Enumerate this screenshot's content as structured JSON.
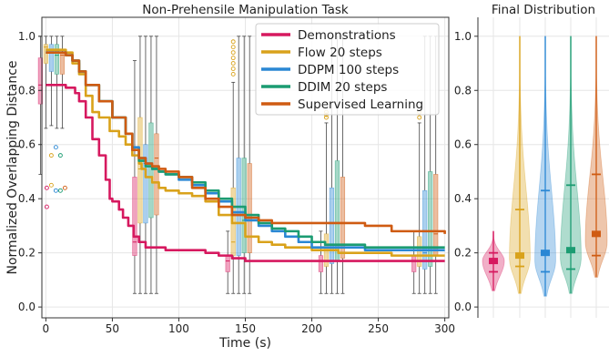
{
  "chart_data": [
    {
      "type": "line",
      "title": "Non-Prehensile Manipulation Task",
      "xlabel": "Time (s)",
      "ylabel": "Normalized Overlapping Distance",
      "xlim": [
        -3,
        303
      ],
      "ylim": [
        -0.04,
        1.07
      ],
      "xticks": [
        0,
        50,
        100,
        150,
        200,
        250,
        300
      ],
      "yticks": [
        0.0,
        0.2,
        0.4,
        0.6,
        0.8,
        1.0
      ],
      "xtick_labels": [
        "0",
        "50",
        "100",
        "150",
        "200",
        "250",
        "300"
      ],
      "ytick_labels": [
        "0.0",
        "0.2",
        "0.4",
        "0.6",
        "0.8",
        "1.0"
      ],
      "grid": true,
      "legend_position": "top-right",
      "series": [
        {
          "name": "Demonstrations",
          "color": "#d6195f",
          "x": [
            0,
            12,
            15,
            22,
            25,
            30,
            35,
            40,
            45,
            48,
            50,
            55,
            58,
            62,
            66,
            70,
            75,
            80,
            90,
            100,
            110,
            120,
            130,
            140,
            150,
            175,
            200,
            250,
            300
          ],
          "y": [
            0.82,
            0.82,
            0.81,
            0.79,
            0.76,
            0.7,
            0.62,
            0.56,
            0.47,
            0.4,
            0.39,
            0.36,
            0.33,
            0.3,
            0.26,
            0.24,
            0.22,
            0.22,
            0.21,
            0.21,
            0.21,
            0.2,
            0.19,
            0.18,
            0.17,
            0.17,
            0.17,
            0.17,
            0.17
          ]
        },
        {
          "name": "Flow 20 steps",
          "color": "#d9a21b",
          "x": [
            0,
            8,
            15,
            20,
            25,
            30,
            35,
            40,
            48,
            55,
            60,
            65,
            70,
            72,
            75,
            80,
            85,
            90,
            100,
            110,
            120,
            130,
            140,
            150,
            160,
            170,
            180,
            200,
            220,
            240,
            260,
            280,
            300
          ],
          "y": [
            0.95,
            0.95,
            0.94,
            0.9,
            0.86,
            0.78,
            0.72,
            0.7,
            0.65,
            0.63,
            0.6,
            0.56,
            0.53,
            0.51,
            0.48,
            0.46,
            0.44,
            0.43,
            0.42,
            0.41,
            0.39,
            0.34,
            0.31,
            0.26,
            0.24,
            0.23,
            0.22,
            0.21,
            0.2,
            0.2,
            0.19,
            0.19,
            0.19
          ]
        },
        {
          "name": "DDPM 100 steps",
          "color": "#2a87d4",
          "x": [
            0,
            8,
            15,
            20,
            25,
            30,
            40,
            50,
            60,
            65,
            70,
            75,
            80,
            85,
            90,
            100,
            110,
            120,
            130,
            140,
            150,
            160,
            170,
            180,
            190,
            200,
            220,
            240,
            260,
            280,
            300
          ],
          "y": [
            0.94,
            0.94,
            0.93,
            0.91,
            0.87,
            0.82,
            0.76,
            0.7,
            0.64,
            0.59,
            0.55,
            0.53,
            0.51,
            0.5,
            0.49,
            0.47,
            0.45,
            0.42,
            0.39,
            0.35,
            0.32,
            0.3,
            0.28,
            0.26,
            0.24,
            0.22,
            0.22,
            0.21,
            0.21,
            0.21,
            0.21
          ]
        },
        {
          "name": "DDIM 20 steps",
          "color": "#1b9c72",
          "x": [
            0,
            8,
            15,
            20,
            25,
            30,
            40,
            50,
            60,
            65,
            70,
            75,
            80,
            85,
            90,
            100,
            110,
            120,
            130,
            140,
            150,
            160,
            170,
            180,
            190,
            200,
            210,
            220,
            240,
            260,
            280,
            300
          ],
          "y": [
            0.94,
            0.94,
            0.93,
            0.91,
            0.87,
            0.82,
            0.76,
            0.7,
            0.64,
            0.58,
            0.54,
            0.52,
            0.51,
            0.5,
            0.49,
            0.48,
            0.46,
            0.43,
            0.4,
            0.37,
            0.34,
            0.31,
            0.29,
            0.28,
            0.26,
            0.24,
            0.23,
            0.23,
            0.22,
            0.22,
            0.22,
            0.22
          ]
        },
        {
          "name": "Supervised Learning",
          "color": "#cf5b12",
          "x": [
            0,
            8,
            15,
            20,
            25,
            30,
            40,
            50,
            60,
            65,
            70,
            75,
            80,
            85,
            90,
            100,
            110,
            120,
            130,
            140,
            150,
            160,
            170,
            175,
            200,
            220,
            240,
            260,
            280,
            300
          ],
          "y": [
            0.94,
            0.94,
            0.93,
            0.91,
            0.87,
            0.82,
            0.76,
            0.7,
            0.64,
            0.58,
            0.55,
            0.53,
            0.52,
            0.51,
            0.5,
            0.48,
            0.44,
            0.4,
            0.37,
            0.34,
            0.33,
            0.32,
            0.31,
            0.31,
            0.31,
            0.31,
            0.3,
            0.28,
            0.28,
            0.27
          ]
        }
      ],
      "boxplots": [
        {
          "t": 0,
          "boxes": [
            {
              "series": "Demonstrations",
              "whisker_low": 0.49,
              "q1": 0.75,
              "median": 0.82,
              "q3": 0.92,
              "whisker_high": 1.0,
              "fliers": [
                0.44,
                0.37
              ]
            },
            {
              "series": "Flow 20 steps",
              "whisker_low": 0.66,
              "q1": 0.9,
              "median": 0.96,
              "q3": 0.97,
              "whisker_high": 1.0,
              "fliers": [
                0.56,
                0.45
              ]
            },
            {
              "series": "DDPM 100 steps",
              "whisker_low": 0.67,
              "q1": 0.87,
              "median": 0.94,
              "q3": 0.97,
              "whisker_high": 1.0,
              "fliers": [
                0.59,
                0.43
              ]
            },
            {
              "series": "DDIM 20 steps",
              "whisker_low": 0.66,
              "q1": 0.86,
              "median": 0.93,
              "q3": 0.97,
              "whisker_high": 1.0,
              "fliers": [
                0.56,
                0.43
              ]
            },
            {
              "series": "Supervised Learning",
              "whisker_low": 0.66,
              "q1": 0.86,
              "median": 0.93,
              "q3": 0.94,
              "whisker_high": 1.0,
              "fliers": [
                0.44
              ]
            }
          ]
        },
        {
          "t": 75,
          "boxes": [
            {
              "series": "Demonstrations",
              "whisker_low": 0.05,
              "q1": 0.19,
              "median": 0.24,
              "q3": 0.48,
              "whisker_high": 0.91
            },
            {
              "series": "Flow 20 steps",
              "whisker_low": 0.05,
              "q1": 0.31,
              "median": 0.51,
              "q3": 0.7,
              "whisker_high": 1.0
            },
            {
              "series": "DDPM 100 steps",
              "whisker_low": 0.05,
              "q1": 0.31,
              "median": 0.53,
              "q3": 0.6,
              "whisker_high": 1.0
            },
            {
              "series": "DDIM 20 steps",
              "whisker_low": 0.05,
              "q1": 0.33,
              "median": 0.53,
              "q3": 0.68,
              "whisker_high": 1.0
            },
            {
              "series": "Supervised Learning",
              "whisker_low": 0.05,
              "q1": 0.34,
              "median": 0.55,
              "q3": 0.64,
              "whisker_high": 1.0
            }
          ]
        },
        {
          "t": 145,
          "boxes": [
            {
              "series": "Demonstrations",
              "whisker_low": 0.05,
              "q1": 0.13,
              "median": 0.17,
              "q3": 0.19,
              "whisker_high": 0.28
            },
            {
              "series": "Flow 20 steps",
              "whisker_low": 0.05,
              "q1": 0.19,
              "median": 0.24,
              "q3": 0.44,
              "whisker_high": 0.83,
              "fliers": [
                0.86,
                0.88,
                0.9,
                0.92,
                0.94,
                0.96,
                0.98
              ]
            },
            {
              "series": "DDPM 100 steps",
              "whisker_low": 0.05,
              "q1": 0.19,
              "median": 0.31,
              "q3": 0.55,
              "whisker_high": 1.0
            },
            {
              "series": "DDIM 20 steps",
              "whisker_low": 0.05,
              "q1": 0.2,
              "median": 0.32,
              "q3": 0.55,
              "whisker_high": 1.0
            },
            {
              "series": "Supervised Learning",
              "whisker_low": 0.05,
              "q1": 0.2,
              "median": 0.32,
              "q3": 0.53,
              "whisker_high": 1.0
            }
          ]
        },
        {
          "t": 215,
          "boxes": [
            {
              "series": "Demonstrations",
              "whisker_low": 0.05,
              "q1": 0.13,
              "median": 0.17,
              "q3": 0.19,
              "whisker_high": 0.28
            },
            {
              "series": "Flow 20 steps",
              "whisker_low": 0.05,
              "q1": 0.15,
              "median": 0.21,
              "q3": 0.27,
              "whisker_high": 0.68,
              "fliers": [
                0.7,
                0.71,
                0.72
              ]
            },
            {
              "series": "DDPM 100 steps",
              "whisker_low": 0.05,
              "q1": 0.16,
              "median": 0.22,
              "q3": 0.44,
              "whisker_high": 1.0
            },
            {
              "series": "DDIM 20 steps",
              "whisker_low": 0.05,
              "q1": 0.17,
              "median": 0.23,
              "q3": 0.54,
              "whisker_high": 1.0
            },
            {
              "series": "Supervised Learning",
              "whisker_low": 0.05,
              "q1": 0.18,
              "median": 0.31,
              "q3": 0.48,
              "whisker_high": 1.0
            }
          ]
        },
        {
          "t": 285,
          "boxes": [
            {
              "series": "Demonstrations",
              "whisker_low": 0.05,
              "q1": 0.13,
              "median": 0.17,
              "q3": 0.19,
              "whisker_high": 0.28
            },
            {
              "series": "Flow 20 steps",
              "whisker_low": 0.05,
              "q1": 0.15,
              "median": 0.19,
              "q3": 0.26,
              "whisker_high": 0.68,
              "fliers": [
                0.7,
                0.72
              ]
            },
            {
              "series": "DDPM 100 steps",
              "whisker_low": 0.05,
              "q1": 0.14,
              "median": 0.2,
              "q3": 0.43,
              "whisker_high": 1.0
            },
            {
              "series": "DDIM 20 steps",
              "whisker_low": 0.05,
              "q1": 0.15,
              "median": 0.22,
              "q3": 0.5,
              "whisker_high": 1.0
            },
            {
              "series": "Supervised Learning",
              "whisker_low": 0.05,
              "q1": 0.19,
              "median": 0.27,
              "q3": 0.49,
              "whisker_high": 1.0
            }
          ]
        }
      ]
    },
    {
      "type": "violin",
      "title": "Final Distribution",
      "ylim": [
        -0.04,
        1.07
      ],
      "yticks": [
        0.0,
        0.2,
        0.4,
        0.6,
        0.8,
        1.0
      ],
      "ytick_labels": [
        "0.0",
        "0.2",
        "0.4",
        "0.6",
        "0.8",
        "1.0"
      ],
      "grid": true,
      "violins": [
        {
          "series": "Demonstrations",
          "color": "#d6195f",
          "min": 0.06,
          "q1": 0.13,
          "median": 0.17,
          "q3": 0.2,
          "max": 0.28,
          "mode": 0.17,
          "width": 1.0
        },
        {
          "series": "Flow 20 steps",
          "color": "#d9a21b",
          "min": 0.05,
          "q1": 0.15,
          "median": 0.19,
          "q3": 0.36,
          "max": 1.0,
          "mode": 0.18,
          "width": 0.95
        },
        {
          "series": "DDPM 100 steps",
          "color": "#2a87d4",
          "min": 0.04,
          "q1": 0.13,
          "median": 0.2,
          "q3": 0.43,
          "max": 1.0,
          "mode": 0.17,
          "width": 0.95
        },
        {
          "series": "DDIM 20 steps",
          "color": "#1b9c72",
          "min": 0.05,
          "q1": 0.14,
          "median": 0.21,
          "q3": 0.45,
          "max": 1.0,
          "mode": 0.18,
          "width": 0.95
        },
        {
          "series": "Supervised Learning",
          "color": "#cf5b12",
          "min": 0.11,
          "q1": 0.19,
          "median": 0.27,
          "q3": 0.49,
          "max": 1.0,
          "mode": 0.24,
          "width": 1.0
        }
      ]
    }
  ]
}
